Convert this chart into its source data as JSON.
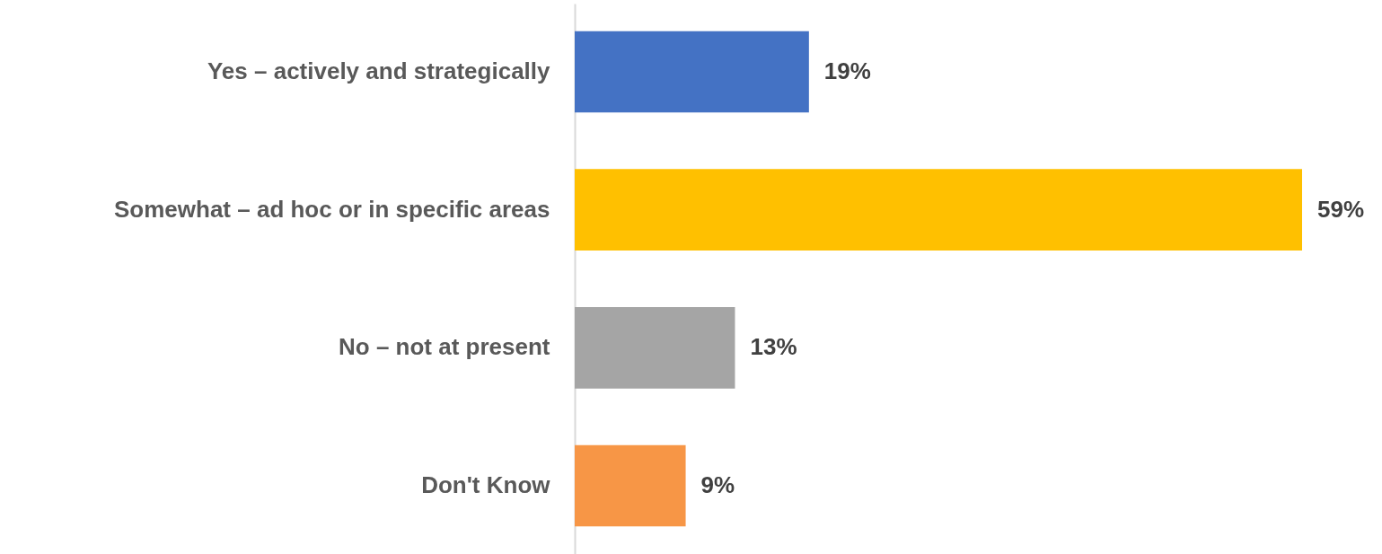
{
  "chart_data": {
    "type": "bar",
    "orientation": "horizontal",
    "categories": [
      "Yes – actively and strategically",
      "Somewhat – ad hoc or in specific areas",
      "No – not at present",
      "Don't Know"
    ],
    "values": [
      19,
      59,
      13,
      9
    ],
    "colors": [
      "#4472c4",
      "#ffc000",
      "#a5a5a5",
      "#f79646"
    ],
    "value_labels": [
      "19%",
      "59%",
      "13%",
      "9%"
    ]
  }
}
